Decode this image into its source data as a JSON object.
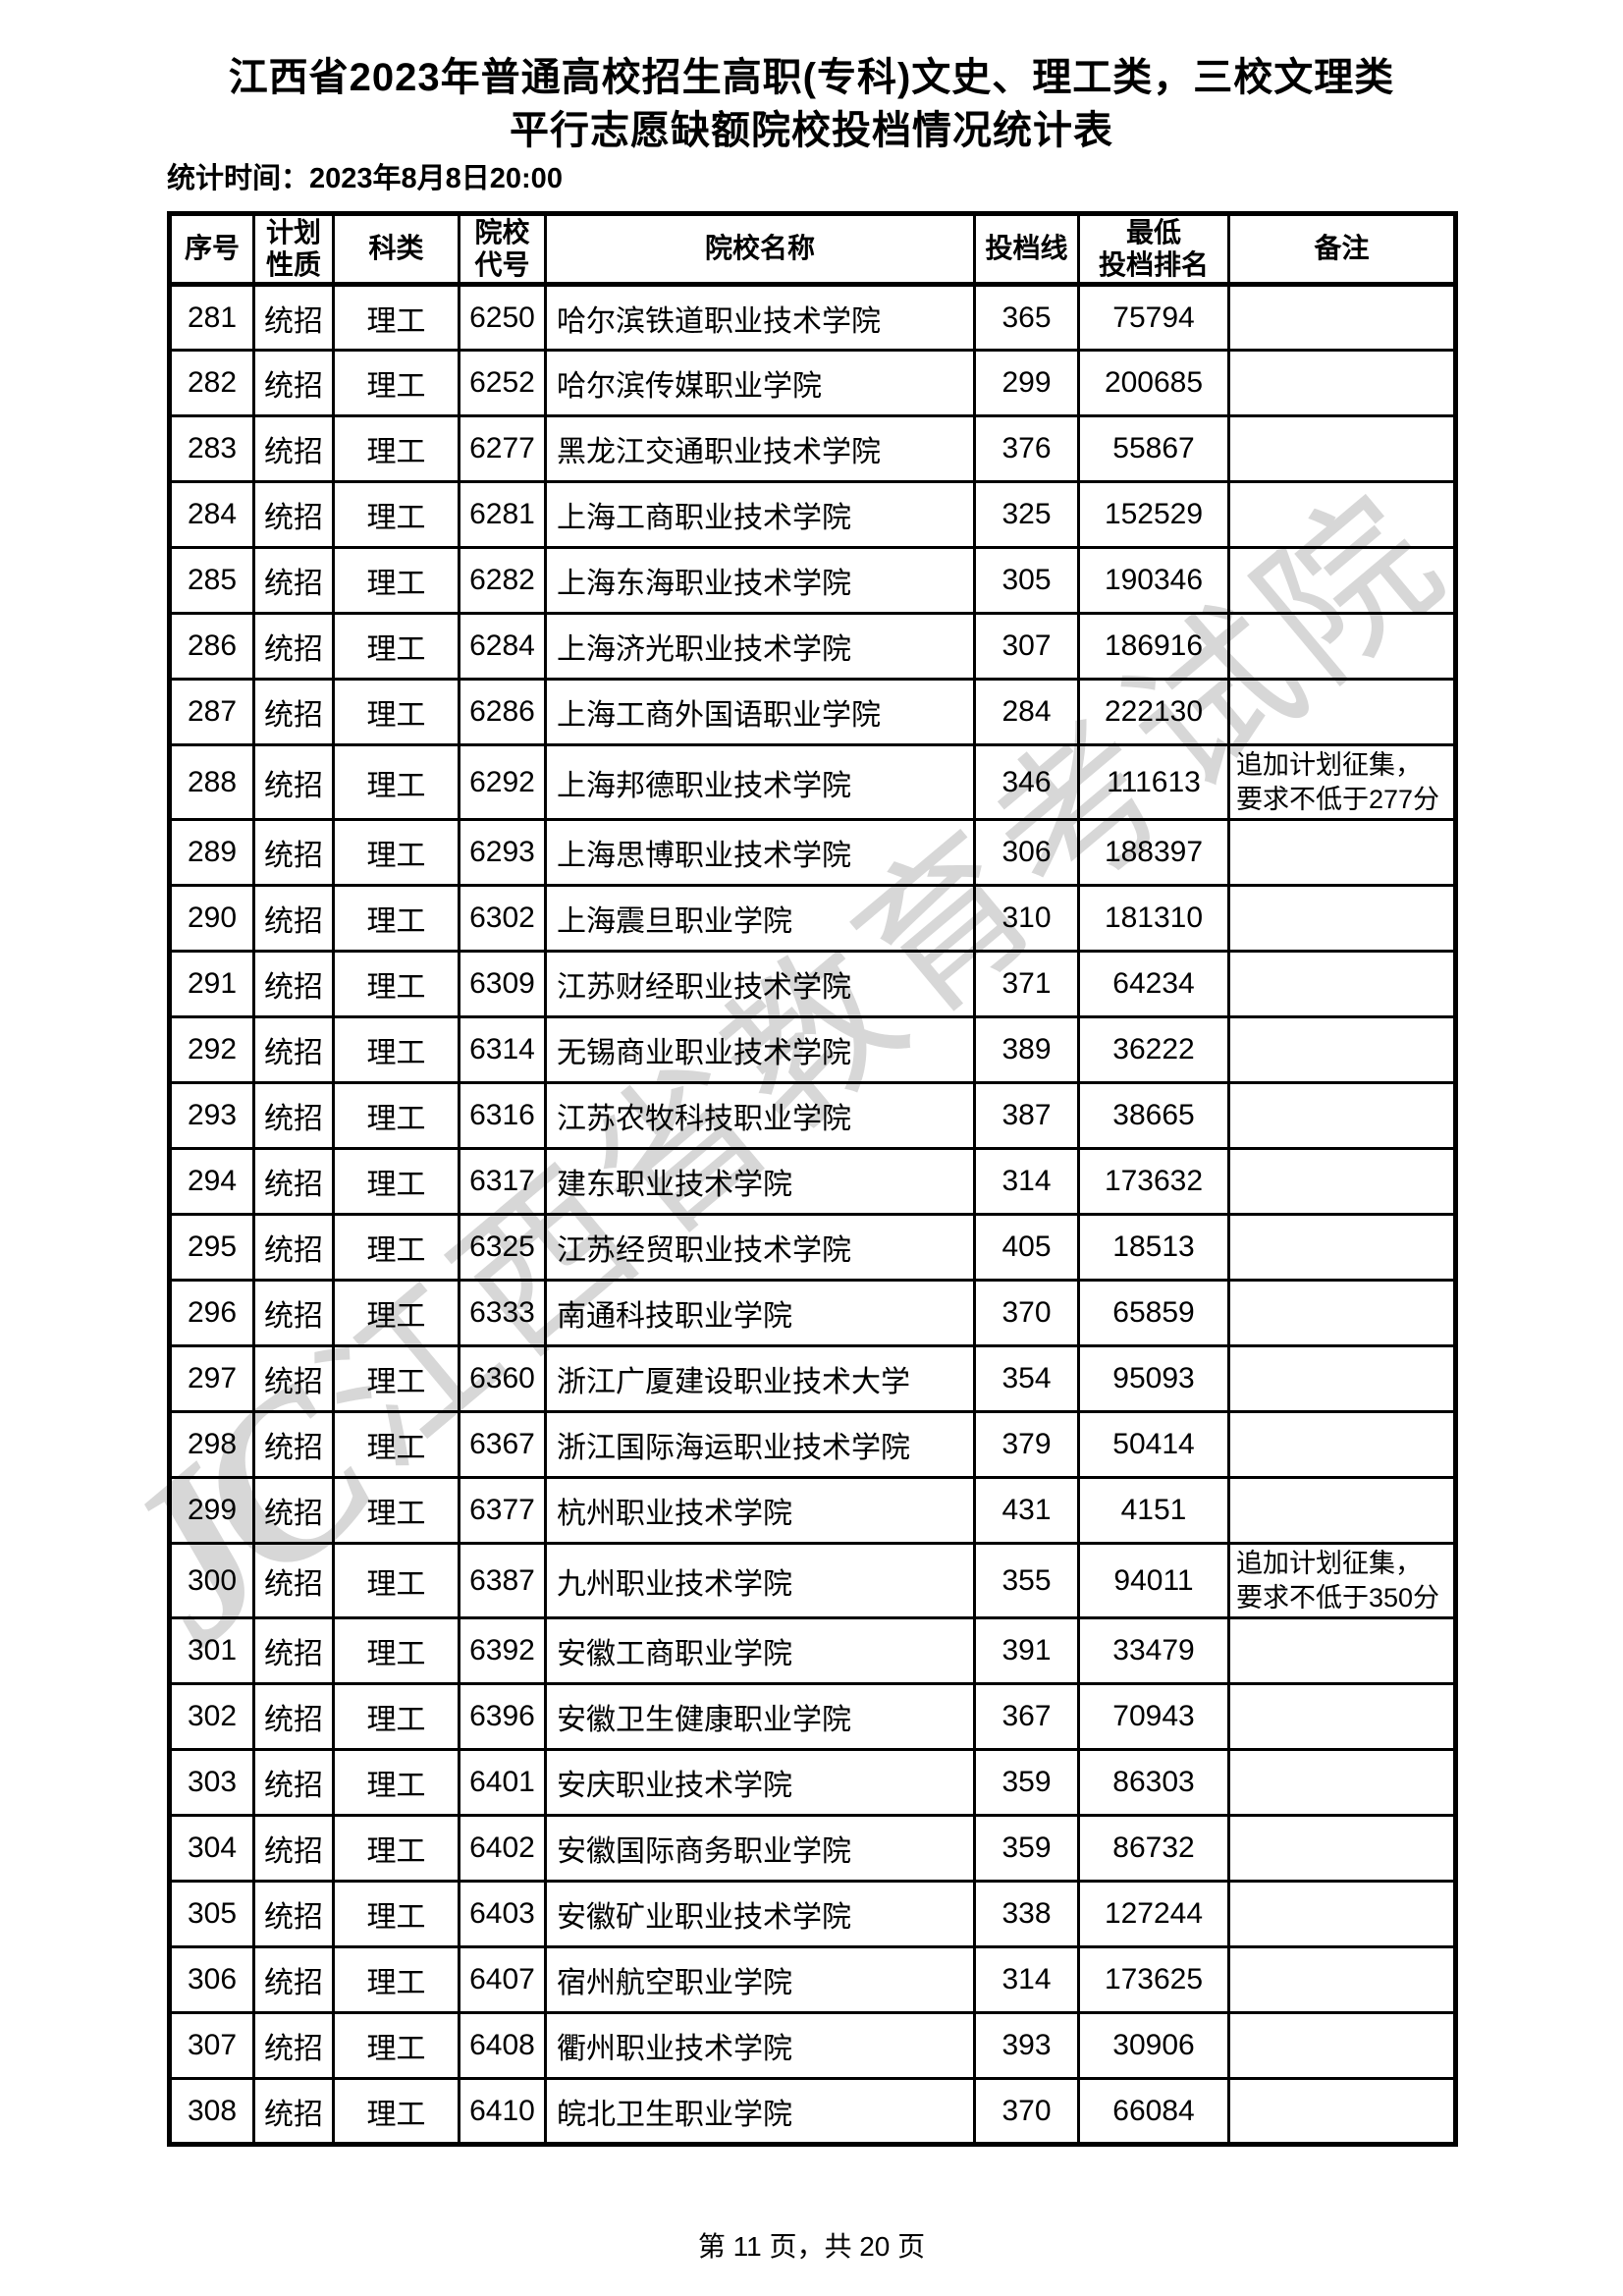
{
  "page": {
    "title_line1": "江西省2023年普通高校招生高职(专科)文史、理工类，三校文理类",
    "title_line2": "平行志愿缺额院校投档情况统计表",
    "stat_time": "统计时间：2023年8月8日20:00",
    "footer": "第 11 页，共 20 页",
    "watermark_text": "江西省教育考试院",
    "watermark_logo": "JC"
  },
  "table": {
    "headers": [
      "序号",
      "计划\n性质",
      "科类",
      "院校\n代号",
      "院校名称",
      "投档线",
      "最低\n投档排名",
      "备注"
    ],
    "column_keys": [
      "seq",
      "plan",
      "category",
      "code",
      "name",
      "line",
      "rank",
      "remark"
    ],
    "rows": [
      [
        "281",
        "统招",
        "理工",
        "6250",
        "哈尔滨铁道职业技术学院",
        "365",
        "75794",
        ""
      ],
      [
        "282",
        "统招",
        "理工",
        "6252",
        "哈尔滨传媒职业学院",
        "299",
        "200685",
        ""
      ],
      [
        "283",
        "统招",
        "理工",
        "6277",
        "黑龙江交通职业技术学院",
        "376",
        "55867",
        ""
      ],
      [
        "284",
        "统招",
        "理工",
        "6281",
        "上海工商职业技术学院",
        "325",
        "152529",
        ""
      ],
      [
        "285",
        "统招",
        "理工",
        "6282",
        "上海东海职业技术学院",
        "305",
        "190346",
        ""
      ],
      [
        "286",
        "统招",
        "理工",
        "6284",
        "上海济光职业技术学院",
        "307",
        "186916",
        ""
      ],
      [
        "287",
        "统招",
        "理工",
        "6286",
        "上海工商外国语职业学院",
        "284",
        "222130",
        ""
      ],
      [
        "288",
        "统招",
        "理工",
        "6292",
        "上海邦德职业技术学院",
        "346",
        "111613",
        "追加计划征集，要求不低于277分"
      ],
      [
        "289",
        "统招",
        "理工",
        "6293",
        "上海思博职业技术学院",
        "306",
        "188397",
        ""
      ],
      [
        "290",
        "统招",
        "理工",
        "6302",
        "上海震旦职业学院",
        "310",
        "181310",
        ""
      ],
      [
        "291",
        "统招",
        "理工",
        "6309",
        "江苏财经职业技术学院",
        "371",
        "64234",
        ""
      ],
      [
        "292",
        "统招",
        "理工",
        "6314",
        "无锡商业职业技术学院",
        "389",
        "36222",
        ""
      ],
      [
        "293",
        "统招",
        "理工",
        "6316",
        "江苏农牧科技职业学院",
        "387",
        "38665",
        ""
      ],
      [
        "294",
        "统招",
        "理工",
        "6317",
        "建东职业技术学院",
        "314",
        "173632",
        ""
      ],
      [
        "295",
        "统招",
        "理工",
        "6325",
        "江苏经贸职业技术学院",
        "405",
        "18513",
        ""
      ],
      [
        "296",
        "统招",
        "理工",
        "6333",
        "南通科技职业学院",
        "370",
        "65859",
        ""
      ],
      [
        "297",
        "统招",
        "理工",
        "6360",
        "浙江广厦建设职业技术大学",
        "354",
        "95093",
        ""
      ],
      [
        "298",
        "统招",
        "理工",
        "6367",
        "浙江国际海运职业技术学院",
        "379",
        "50414",
        ""
      ],
      [
        "299",
        "统招",
        "理工",
        "6377",
        "杭州职业技术学院",
        "431",
        "4151",
        ""
      ],
      [
        "300",
        "统招",
        "理工",
        "6387",
        "九州职业技术学院",
        "355",
        "94011",
        "追加计划征集，要求不低于350分"
      ],
      [
        "301",
        "统招",
        "理工",
        "6392",
        "安徽工商职业学院",
        "391",
        "33479",
        ""
      ],
      [
        "302",
        "统招",
        "理工",
        "6396",
        "安徽卫生健康职业学院",
        "367",
        "70943",
        ""
      ],
      [
        "303",
        "统招",
        "理工",
        "6401",
        "安庆职业技术学院",
        "359",
        "86303",
        ""
      ],
      [
        "304",
        "统招",
        "理工",
        "6402",
        "安徽国际商务职业学院",
        "359",
        "86732",
        ""
      ],
      [
        "305",
        "统招",
        "理工",
        "6403",
        "安徽矿业职业技术学院",
        "338",
        "127244",
        ""
      ],
      [
        "306",
        "统招",
        "理工",
        "6407",
        "宿州航空职业学院",
        "314",
        "173625",
        ""
      ],
      [
        "307",
        "统招",
        "理工",
        "6408",
        "衢州职业技术学院",
        "393",
        "30906",
        ""
      ],
      [
        "308",
        "统招",
        "理工",
        "6410",
        "皖北卫生职业学院",
        "370",
        "66084",
        ""
      ]
    ]
  }
}
